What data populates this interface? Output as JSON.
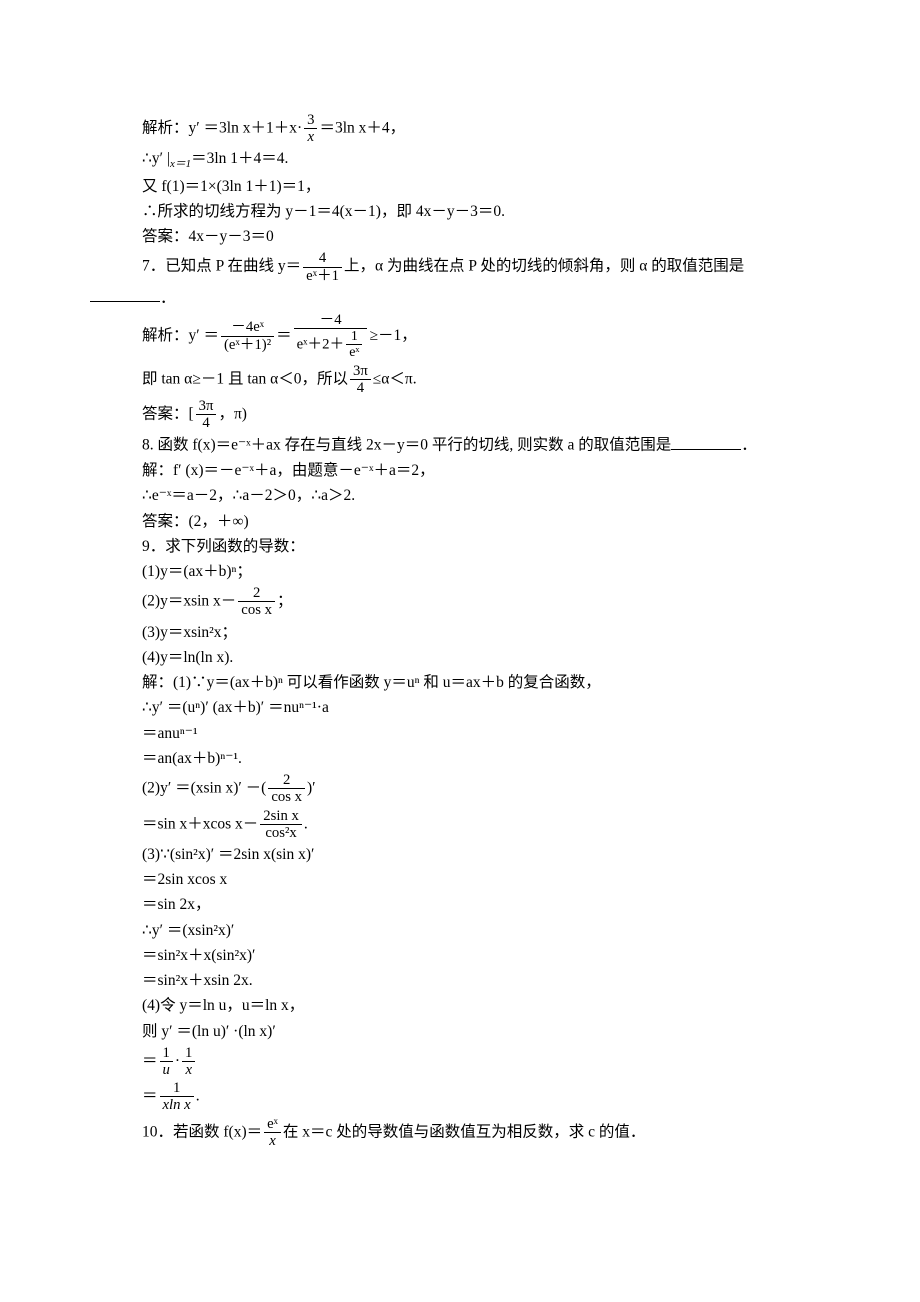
{
  "fontFamilyMain": "SimSun",
  "fontFamilyMath": "Times New Roman",
  "fontSize": 15.5,
  "textColor": "#000000",
  "backgroundColor": "#ffffff",
  "lines": {
    "l01": "解析：y′ ＝3ln x＋1＋x·",
    "l01f_num": "3",
    "l01f_den": "x",
    "l01b": "＝3ln x＋4，",
    "l02a": "∴y′ |",
    "l02sub": "x＝1",
    "l02b": "＝3ln 1＋4＝4.",
    "l03": "又 f(1)＝1×(3ln 1＋1)＝1，",
    "l04": "∴所求的切线方程为 y－1＝4(x－1)，即 4x－y－3＝0.",
    "l05": "答案：4x－y－3＝0",
    "l06a": "7．已知点 P 在曲线 y＝",
    "l06f_num": "4",
    "l06f_den": "eˣ＋1",
    "l06b": "上，α 为曲线在点 P 处的切线的倾斜角，则 α 的取值范围是",
    "l07": "．",
    "l08a": "解析：y′ ＝",
    "l08f1_num": "－4eˣ",
    "l08f1_den": "(eˣ＋1)²",
    "l08b": "＝",
    "l08f2_num": "－4",
    "l08f2_den_a": "eˣ＋2＋",
    "l08f2_den_num": "1",
    "l08f2_den_den": "eˣ",
    "l08c": "≥－1，",
    "l09a": "即 tan α≥－1 且 tan α＜0，所以",
    "l09f_num": "3π",
    "l09f_den": "4",
    "l09b": "≤α＜π.",
    "l10a": "答案：[",
    "l10f_num": "3π",
    "l10f_den": "4",
    "l10b": "，π)",
    "l11": "8. 函数 f(x)＝e⁻ˣ＋ax 存在与直线 2x－y＝0 平行的切线, 则实数 a 的取值范围是",
    "l11b": "．",
    "l12": "解：f′ (x)＝－e⁻ˣ＋a，由题意－e⁻ˣ＋a＝2，",
    "l13": "∴e⁻ˣ＝a－2，∴a－2＞0，∴a＞2.",
    "l14": "答案：(2，＋∞)",
    "l15": "9．求下列函数的导数：",
    "l16": "(1)y＝(ax＋b)ⁿ；",
    "l17a": "(2)y＝xsin x－",
    "l17f_num": "2",
    "l17f_den": "cos x",
    "l17b": "；",
    "l18": "(3)y＝xsin²x；",
    "l19": "(4)y＝ln(ln x).",
    "l20": "解：(1)∵y＝(ax＋b)ⁿ 可以看作函数 y＝uⁿ 和 u＝ax＋b 的复合函数，",
    "l21": "∴y′ ＝(uⁿ)′ (ax＋b)′ ＝nuⁿ⁻¹·a",
    "l22": "＝anuⁿ⁻¹",
    "l23": "＝an(ax＋b)ⁿ⁻¹.",
    "l24a": "(2)y′ ＝(xsin x)′ －(",
    "l24f_num": "2",
    "l24f_den": "cos x",
    "l24b": ")′",
    "l25a": "＝sin x＋xcos x－",
    "l25f_num": "2sin x",
    "l25f_den": "cos²x",
    "l25b": ".",
    "l26": "(3)∵(sin²x)′ ＝2sin x(sin x)′",
    "l27": "＝2sin xcos x",
    "l28": "＝sin 2x，",
    "l29": "∴y′ ＝(xsin²x)′",
    "l30": "＝sin²x＋x(sin²x)′",
    "l31": "＝sin²x＋xsin 2x.",
    "l32": "(4)令 y＝ln u，u＝ln x，",
    "l33": "则 y′ ＝(ln u)′ ·(ln x)′",
    "l34a": "＝",
    "l34f1_num": "1",
    "l34f1_den": "u",
    "l34b": "·",
    "l34f2_num": "1",
    "l34f2_den": "x",
    "l35a": "＝",
    "l35f_num": "1",
    "l35f_den": "xln x",
    "l35b": ".",
    "l36a": "10．若函数 f(x)＝",
    "l36f_num": "eˣ",
    "l36f_den": "x",
    "l36b": "在 x＝c 处的导数值与函数值互为相反数，求 c 的值．"
  }
}
